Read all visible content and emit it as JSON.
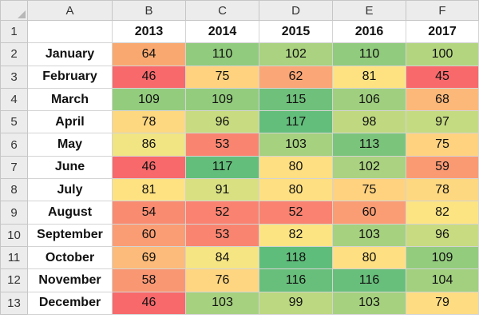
{
  "sheet": {
    "columns": [
      "A",
      "B",
      "C",
      "D",
      "E",
      "F"
    ],
    "row_numbers": [
      "1",
      "2",
      "3",
      "4",
      "5",
      "6",
      "7",
      "8",
      "9",
      "10",
      "11",
      "12",
      "13"
    ],
    "years": [
      "2013",
      "2014",
      "2015",
      "2016",
      "2017"
    ],
    "rows": [
      {
        "label": "January",
        "values": [
          "64",
          "110",
          "102",
          "110",
          "100"
        ],
        "colors": [
          "#f9a970",
          "#91cb7d",
          "#aad280",
          "#91cb7d",
          "#b3d580"
        ]
      },
      {
        "label": "February",
        "values": [
          "46",
          "75",
          "62",
          "81",
          "45"
        ],
        "colors": [
          "#f8696b",
          "#fed27f",
          "#fba676",
          "#fee282",
          "#f8696b"
        ]
      },
      {
        "label": "March",
        "values": [
          "109",
          "109",
          "115",
          "106",
          "68"
        ],
        "colors": [
          "#94cc7e",
          "#94cc7e",
          "#6fc07b",
          "#a0d07f",
          "#fcb879"
        ]
      },
      {
        "label": "April",
        "values": [
          "78",
          "96",
          "117",
          "98",
          "97"
        ],
        "colors": [
          "#fed880",
          "#c8db81",
          "#63be7b",
          "#c0d980",
          "#c5db81"
        ]
      },
      {
        "label": "May",
        "values": [
          "86",
          "53",
          "103",
          "113",
          "75"
        ],
        "colors": [
          "#f1e483",
          "#f98570",
          "#a6d17f",
          "#7bc47c",
          "#fed27f"
        ]
      },
      {
        "label": "June",
        "values": [
          "46",
          "117",
          "80",
          "102",
          "59"
        ],
        "colors": [
          "#f8696b",
          "#63be7b",
          "#fedf81",
          "#aad280",
          "#fa9a73"
        ]
      },
      {
        "label": "July",
        "values": [
          "81",
          "91",
          "80",
          "75",
          "78"
        ],
        "colors": [
          "#fee282",
          "#d8e082",
          "#fedf81",
          "#fed27f",
          "#fed880"
        ]
      },
      {
        "label": "August",
        "values": [
          "54",
          "52",
          "52",
          "60",
          "82"
        ],
        "colors": [
          "#f98b71",
          "#f98270",
          "#f98270",
          "#fb9d74",
          "#fde483"
        ]
      },
      {
        "label": "September",
        "values": [
          "60",
          "53",
          "82",
          "103",
          "96"
        ],
        "colors": [
          "#fb9d74",
          "#f98570",
          "#fde483",
          "#a6d17f",
          "#c8db81"
        ]
      },
      {
        "label": "October",
        "values": [
          "69",
          "84",
          "118",
          "80",
          "109"
        ],
        "colors": [
          "#fcbb7a",
          "#f6e583",
          "#5fbd7b",
          "#fedf81",
          "#94cc7e"
        ]
      },
      {
        "label": "November",
        "values": [
          "58",
          "76",
          "116",
          "116",
          "104"
        ],
        "colors": [
          "#fa9773",
          "#fed580",
          "#68bf7b",
          "#68bf7b",
          "#a2d07f"
        ]
      },
      {
        "label": "December",
        "values": [
          "46",
          "103",
          "99",
          "103",
          "79"
        ],
        "colors": [
          "#f8696b",
          "#a6d17f",
          "#bcd880",
          "#a6d17f",
          "#fedc81"
        ]
      }
    ]
  }
}
